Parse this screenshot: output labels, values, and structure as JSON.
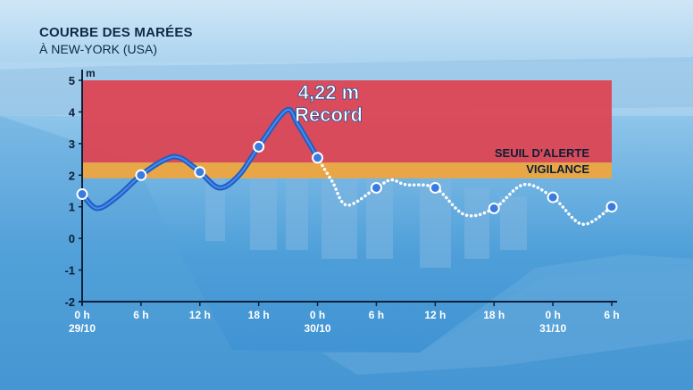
{
  "chart_data": {
    "type": "line",
    "title": "COURBE DES MARÉES",
    "subtitle": "À NEW-YORK (USA)",
    "ylabel": "m",
    "ylim": [
      -2,
      5
    ],
    "yticks": [
      "5",
      "4",
      "3",
      "2",
      "1",
      "0",
      "-1",
      "-2"
    ],
    "xticks": [
      {
        "time": "0 h",
        "date": "29/10"
      },
      {
        "time": "6 h",
        "date": ""
      },
      {
        "time": "12 h",
        "date": ""
      },
      {
        "time": "18 h",
        "date": ""
      },
      {
        "time": "0 h",
        "date": "30/10"
      },
      {
        "time": "6 h",
        "date": ""
      },
      {
        "time": "12 h",
        "date": ""
      },
      {
        "time": "18 h",
        "date": ""
      },
      {
        "time": "0 h",
        "date": "31/10"
      },
      {
        "time": "6 h",
        "date": ""
      }
    ],
    "bands": [
      {
        "label": "SEUIL D'ALERTE",
        "from": 2.4,
        "to": 5,
        "color": "#e0414f"
      },
      {
        "label": "VIGILANCE",
        "from": 1.9,
        "to": 2.4,
        "color": "#f2a53a"
      }
    ],
    "annotation": {
      "value": "4,22 m",
      "text": "Record"
    },
    "series": [
      {
        "observed": [
          {
            "x": 0,
            "y": 1.4
          },
          {
            "x": 1.5,
            "y": 0.95
          },
          {
            "x": 3.5,
            "y": 1.3
          },
          {
            "x": 6,
            "y": 2.0
          },
          {
            "x": 8.5,
            "y": 2.5
          },
          {
            "x": 10,
            "y": 2.55
          },
          {
            "x": 12,
            "y": 2.1
          },
          {
            "x": 14,
            "y": 1.6
          },
          {
            "x": 16,
            "y": 2.0
          },
          {
            "x": 18,
            "y": 2.9
          },
          {
            "x": 20.8,
            "y": 4.05
          },
          {
            "x": 22,
            "y": 3.6
          },
          {
            "x": 24,
            "y": 2.55
          }
        ],
        "forecast": [
          {
            "x": 24,
            "y": 2.55
          },
          {
            "x": 25.5,
            "y": 1.8
          },
          {
            "x": 27,
            "y": 1.05
          },
          {
            "x": 30,
            "y": 1.6
          },
          {
            "x": 31.5,
            "y": 1.85
          },
          {
            "x": 33,
            "y": 1.7
          },
          {
            "x": 36,
            "y": 1.6
          },
          {
            "x": 39,
            "y": 0.75
          },
          {
            "x": 42,
            "y": 0.95
          },
          {
            "x": 45,
            "y": 1.7
          },
          {
            "x": 48,
            "y": 1.3
          },
          {
            "x": 51,
            "y": 0.45
          },
          {
            "x": 54,
            "y": 1.0
          }
        ],
        "markers": [
          {
            "x": 0,
            "y": 1.4
          },
          {
            "x": 6,
            "y": 2.0
          },
          {
            "x": 12,
            "y": 2.1
          },
          {
            "x": 18,
            "y": 2.9
          },
          {
            "x": 24,
            "y": 2.55
          },
          {
            "x": 30,
            "y": 1.6
          },
          {
            "x": 36,
            "y": 1.6
          },
          {
            "x": 42,
            "y": 0.95
          },
          {
            "x": 48,
            "y": 1.3
          },
          {
            "x": 54,
            "y": 1.0
          }
        ]
      }
    ],
    "grid": false,
    "colors": {
      "line": "#2f6fd6",
      "marker": "#3a7be0",
      "forecast": "#ffffff",
      "axis": "#0b1f38",
      "text": "#ffffff"
    }
  }
}
